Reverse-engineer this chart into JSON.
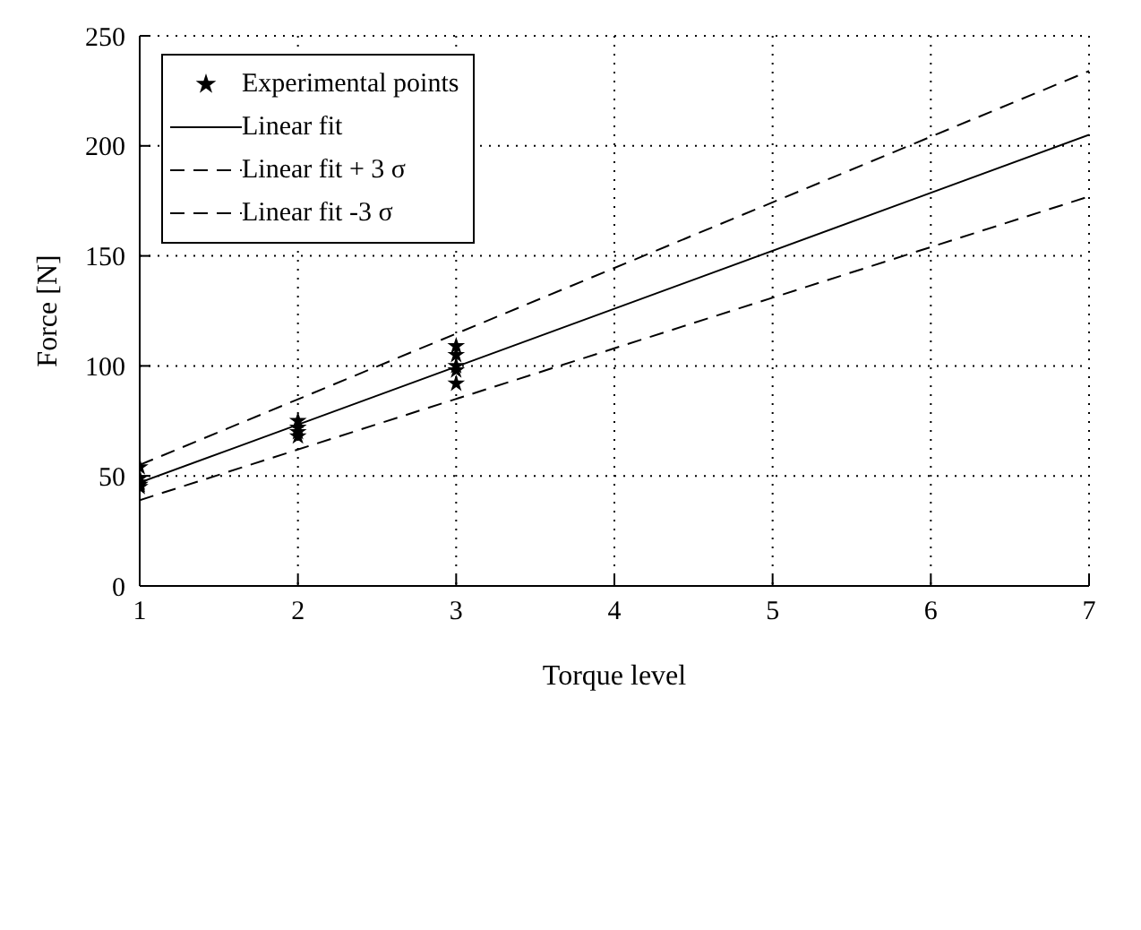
{
  "chart_data": {
    "type": "scatter",
    "xlabel": "Torque level",
    "ylabel": "Force [N]",
    "xlim": [
      1,
      7
    ],
    "ylim": [
      0,
      250
    ],
    "xticks": [
      1,
      2,
      3,
      4,
      5,
      6,
      7
    ],
    "yticks": [
      0,
      50,
      100,
      150,
      200,
      250
    ],
    "grid": true,
    "legend": "top left",
    "series": [
      {
        "name": "Experimental points",
        "marker": "star",
        "color": "#000000",
        "x": [
          1,
          1,
          1,
          1,
          1,
          2,
          2,
          2,
          2,
          3,
          3,
          3,
          3,
          3
        ],
        "values": [
          54,
          49,
          47,
          46,
          45,
          75,
          72,
          70,
          68,
          109,
          105,
          100,
          98,
          92
        ]
      },
      {
        "name": "Linear fit",
        "type": "line",
        "marker": "none",
        "line_style": "solid",
        "color": "#000000",
        "x": [
          1,
          7
        ],
        "values": [
          47,
          205
        ]
      },
      {
        "name": "Linear fit + 3 σ",
        "type": "line",
        "marker": "none",
        "line_style": "dashed",
        "color": "#000000",
        "x": [
          1,
          7
        ],
        "values": [
          55,
          234
        ]
      },
      {
        "name": "Linear fit -3 σ",
        "type": "line",
        "marker": "none",
        "line_style": "dashed",
        "color": "#000000",
        "x": [
          1,
          7
        ],
        "values": [
          39,
          177
        ]
      }
    ]
  }
}
